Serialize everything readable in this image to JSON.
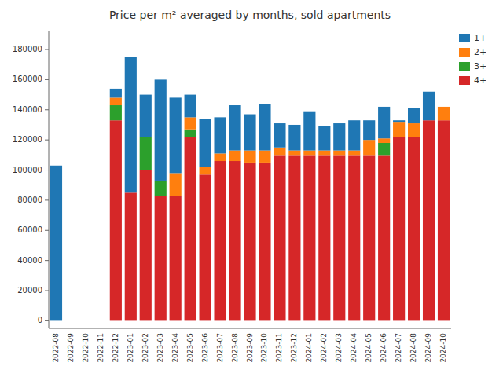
{
  "chart_data": {
    "type": "bar",
    "stacked": true,
    "title": "Price per m² averaged by months, sold apartments",
    "categories": [
      "2022-08",
      "2022-09",
      "2022-10",
      "2022-11",
      "2022-12",
      "2023-01",
      "2023-02",
      "2023-03",
      "2023-04",
      "2023-05",
      "2023-06",
      "2023-07",
      "2023-08",
      "2023-09",
      "2023-10",
      "2023-11",
      "2023-12",
      "2024-01",
      "2024-02",
      "2024-03",
      "2024-04",
      "2024-05",
      "2024-06",
      "2024-07",
      "2024-08",
      "2024-09",
      "2024-10"
    ],
    "series": [
      {
        "name": "4+",
        "color": "#d62728",
        "values": [
          0,
          0,
          0,
          0,
          133000,
          85000,
          100000,
          83000,
          83000,
          122000,
          97000,
          106000,
          106000,
          105000,
          105000,
          110000,
          110000,
          110000,
          110000,
          110000,
          110000,
          110000,
          110000,
          122000,
          122000,
          133000,
          133000
        ]
      },
      {
        "name": "3+",
        "color": "#2ca02c",
        "values": [
          0,
          0,
          0,
          0,
          10000,
          0,
          22000,
          10000,
          0,
          5000,
          0,
          0,
          0,
          0,
          0,
          0,
          0,
          0,
          0,
          0,
          0,
          0,
          8000,
          0,
          0,
          0,
          0
        ]
      },
      {
        "name": "2+",
        "color": "#ff7f0e",
        "values": [
          0,
          0,
          0,
          0,
          5000,
          0,
          0,
          0,
          15000,
          8000,
          5000,
          5000,
          7000,
          8000,
          8000,
          5000,
          3000,
          3000,
          3000,
          3000,
          3000,
          10000,
          3000,
          10000,
          9000,
          0,
          9000
        ]
      },
      {
        "name": "1+",
        "color": "#1f77b4",
        "values": [
          103000,
          0,
          0,
          0,
          6000,
          90000,
          28000,
          67000,
          50000,
          15000,
          32000,
          24000,
          30000,
          24000,
          31000,
          16000,
          17000,
          26000,
          16000,
          18000,
          20000,
          13000,
          21000,
          1000,
          10000,
          19000,
          0
        ]
      }
    ],
    "ylim": [
      -5000,
      192000
    ],
    "yticks": [
      0,
      20000,
      40000,
      60000,
      80000,
      100000,
      120000,
      140000,
      160000,
      180000
    ],
    "legend": "upper right",
    "grid": false
  }
}
